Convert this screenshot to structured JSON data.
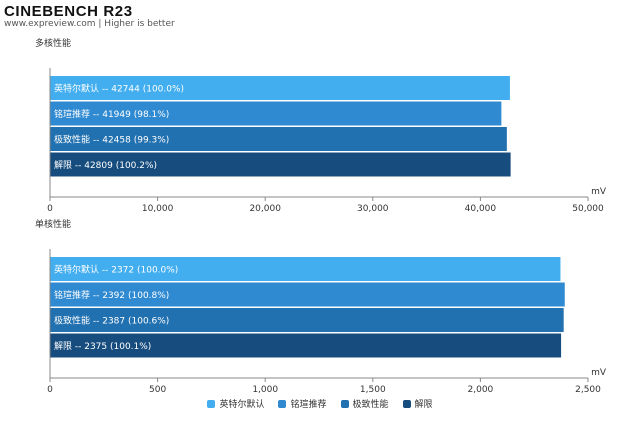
{
  "header": {
    "title": "CINEBENCH R23",
    "subtitle": "www.expreview.com | Higher is better"
  },
  "colors": {
    "series": [
      "#42aef0",
      "#2f8ad1",
      "#2170b0",
      "#174d7e"
    ]
  },
  "chart_data": [
    {
      "type": "bar",
      "orientation": "horizontal",
      "title": "多核性能",
      "unit": "mV",
      "xlim": [
        0,
        50000
      ],
      "ticks": [
        "0",
        "10,000",
        "20,000",
        "30,000",
        "40,000",
        "50,000"
      ],
      "tick_values": [
        0,
        10000,
        20000,
        30000,
        40000,
        50000
      ],
      "categories": [
        "英特尔默认",
        "铭瑄推荐",
        "极致性能",
        "解限"
      ],
      "values": [
        42744,
        41949,
        42458,
        42809
      ],
      "labels": [
        "英特尔默认  --  42744 (100.0%)",
        "铭瑄推荐  --  41949 (98.1%)",
        "极致性能  --  42458 (99.3%)",
        "解限  --  42809 (100.2%)"
      ],
      "grid": false
    },
    {
      "type": "bar",
      "orientation": "horizontal",
      "title": "单核性能",
      "unit": "mV",
      "xlim": [
        0,
        2500
      ],
      "ticks": [
        "0",
        "500",
        "1,000",
        "1,500",
        "2,000",
        "2,500"
      ],
      "tick_values": [
        0,
        500,
        1000,
        1500,
        2000,
        2500
      ],
      "categories": [
        "英特尔默认",
        "铭瑄推荐",
        "极致性能",
        "解限"
      ],
      "values": [
        2372,
        2392,
        2387,
        2375
      ],
      "labels": [
        "英特尔默认  --  2372 (100.0%)",
        "铭瑄推荐  --  2392 (100.8%)",
        "极致性能  --  2387 (100.6%)",
        "解限  --  2375 (100.1%)"
      ],
      "grid": false
    }
  ],
  "legend": {
    "placement": "bottom-center",
    "items": [
      "英特尔默认",
      "铭瑄推荐",
      "极致性能",
      "解限"
    ]
  }
}
